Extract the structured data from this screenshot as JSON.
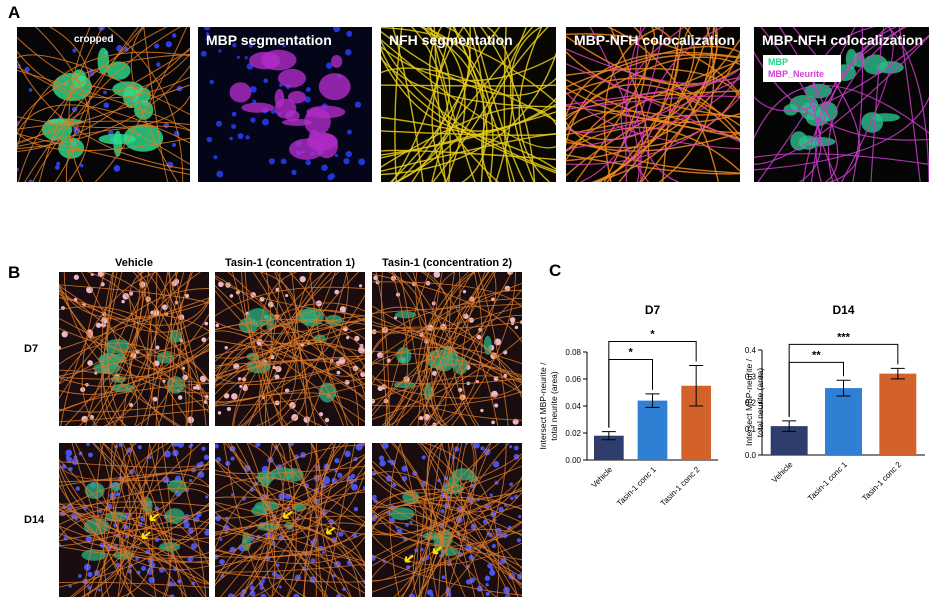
{
  "panel_a": {
    "label": "A",
    "images": [
      {
        "caption": "cropped"
      },
      {
        "caption": "MBP segmentation"
      },
      {
        "caption": "NFH segmentation"
      },
      {
        "caption": "MBP-NFH colocalization"
      },
      {
        "caption": "MBP-NFH colocalization"
      }
    ],
    "legend": [
      {
        "name": "MBP",
        "color": "#1fd58a"
      },
      {
        "name": "MBP_Neurite",
        "color": "#d23fd8"
      }
    ]
  },
  "panel_b": {
    "label": "B",
    "columns": [
      "Vehicle",
      "Tasin-1 (concentration 1)",
      "Tasin-1 (concentration 2)"
    ],
    "rows": [
      "D7",
      "D14"
    ]
  },
  "panel_c": {
    "label": "C"
  },
  "chart_data": [
    {
      "type": "bar",
      "title": "D7",
      "ylabel": [
        "Intersect MBP-neurite /",
        "total neurite (area)"
      ],
      "categories": [
        "Vehicle",
        "Tasin-1 conc 1",
        "Tasin-1 conc 2"
      ],
      "values": [
        0.018,
        0.044,
        0.055
      ],
      "errors": [
        0.003,
        0.005,
        0.015
      ],
      "colors": [
        "#2e3d6b",
        "#2f80d4",
        "#d2622a"
      ],
      "ylim": [
        0,
        0.08
      ],
      "yticks": [
        {
          "value": 0,
          "label": "0.00"
        },
        {
          "value": 0.02,
          "label": "0.02"
        },
        {
          "value": 0.04,
          "label": "0.04"
        },
        {
          "value": 0.06,
          "label": "0.06"
        },
        {
          "value": 0.08,
          "label": "0.08"
        }
      ],
      "significance": [
        {
          "from": "Vehicle",
          "to": "Tasin-1 conc 1",
          "label": "*"
        },
        {
          "from": "Vehicle",
          "to": "Tasin-1 conc 2",
          "label": "*"
        }
      ]
    },
    {
      "type": "bar",
      "title": "D14",
      "ylabel": [
        "Intersect MBP-neurite /",
        "total neurite (area)"
      ],
      "categories": [
        "Vehicle",
        "Tasin-1 conc 1",
        "Tasin-1 conc 2"
      ],
      "values": [
        0.11,
        0.255,
        0.31
      ],
      "errors": [
        0.02,
        0.03,
        0.02
      ],
      "colors": [
        "#2e3d6b",
        "#2f80d4",
        "#d2622a"
      ],
      "ylim": [
        0,
        0.4
      ],
      "yticks": [
        {
          "value": 0,
          "label": "0.0"
        },
        {
          "value": 0.1,
          "label": "0.1"
        },
        {
          "value": 0.2,
          "label": "0.2"
        },
        {
          "value": 0.3,
          "label": "0.3"
        },
        {
          "value": 0.4,
          "label": "0.4"
        }
      ],
      "significance": [
        {
          "from": "Vehicle",
          "to": "Tasin-1 conc 1",
          "label": "**"
        },
        {
          "from": "Vehicle",
          "to": "Tasin-1 conc 2",
          "label": "***"
        }
      ]
    }
  ]
}
